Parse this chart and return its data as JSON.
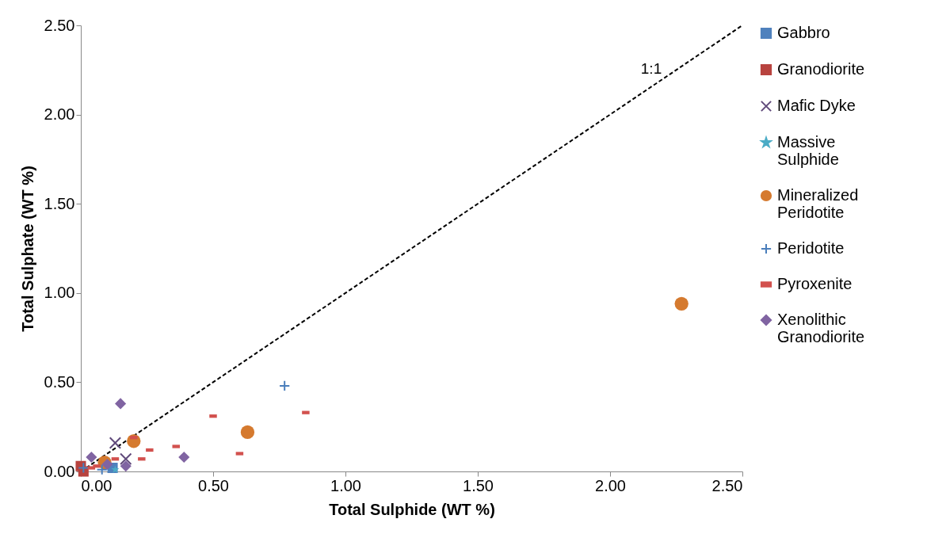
{
  "chart_data": {
    "type": "scatter",
    "xlabel": "Total Sulphide  (WT %)",
    "ylabel": "Total Sulphate (WT %)",
    "xlim": [
      0,
      2.5
    ],
    "ylim": [
      0,
      2.5
    ],
    "xticks": [
      {
        "value": 0,
        "label": "0.00"
      },
      {
        "value": 0.5,
        "label": "0.50"
      },
      {
        "value": 1,
        "label": "1.00"
      },
      {
        "value": 1.5,
        "label": "1.50"
      },
      {
        "value": 2,
        "label": "2.00"
      },
      {
        "value": 2.5,
        "label": "2.50"
      }
    ],
    "yticks": [
      {
        "value": 0,
        "label": "0.00"
      },
      {
        "value": 0.5,
        "label": "0.50"
      },
      {
        "value": 1,
        "label": "1.00"
      },
      {
        "value": 1.5,
        "label": "1.50"
      },
      {
        "value": 2,
        "label": "2.00"
      },
      {
        "value": 2.5,
        "label": "2.50"
      }
    ],
    "grid": false,
    "legend": "right",
    "annotations": [
      "1:1"
    ],
    "series": [
      {
        "name": "Gabbro",
        "color": "#4f81bd",
        "marker": "square",
        "x": [
          0.12
        ],
        "values": [
          0.02
        ]
      },
      {
        "name": "Granodiorite",
        "color": "#b8433f",
        "marker": "square",
        "x": [
          0.0,
          0.01
        ],
        "values": [
          0.03,
          0.0
        ]
      },
      {
        "name": "Mafic Dyke",
        "color": "#604a7b",
        "marker": "cross",
        "x": [
          0.13,
          0.17
        ],
        "values": [
          0.16,
          0.07
        ]
      },
      {
        "name": "Massive Sulphide",
        "color": "#4bacc6",
        "marker": "star",
        "x": [
          0.13
        ],
        "values": [
          0.01
        ]
      },
      {
        "name": "Mineralized Peridotite",
        "color": "#d57a2f",
        "marker": "circle",
        "x": [
          0.2,
          0.09,
          0.63,
          2.27
        ],
        "values": [
          0.17,
          0.05,
          0.22,
          0.94
        ]
      },
      {
        "name": "Peridotite",
        "color": "#4a7ebb",
        "marker": "plus",
        "x": [
          0.01,
          0.08,
          0.77
        ],
        "values": [
          0.02,
          0.01,
          0.48
        ]
      },
      {
        "name": "Pyroxenite",
        "color": "#d2514e",
        "x": [
          0.2,
          0.26,
          0.36,
          0.23,
          0.13,
          0.5,
          0.04,
          0.06,
          0.85,
          0.6
        ],
        "values": [
          0.19,
          0.12,
          0.14,
          0.07,
          0.07,
          0.31,
          0.02,
          0.03,
          0.33,
          0.1
        ]
      },
      {
        "name": "Xenolithic Granodiorite",
        "color": "#8064a2",
        "marker": "diamond",
        "x": [
          0.15,
          0.04,
          0.1,
          0.17,
          0.39
        ],
        "values": [
          0.38,
          0.08,
          0.04,
          0.03,
          0.08
        ]
      },
      {
        "type": "line",
        "color": "#000000",
        "line_style": "dashed",
        "marker": "none",
        "x": [
          0,
          2.5
        ],
        "values": [
          0,
          2.5
        ]
      }
    ]
  }
}
